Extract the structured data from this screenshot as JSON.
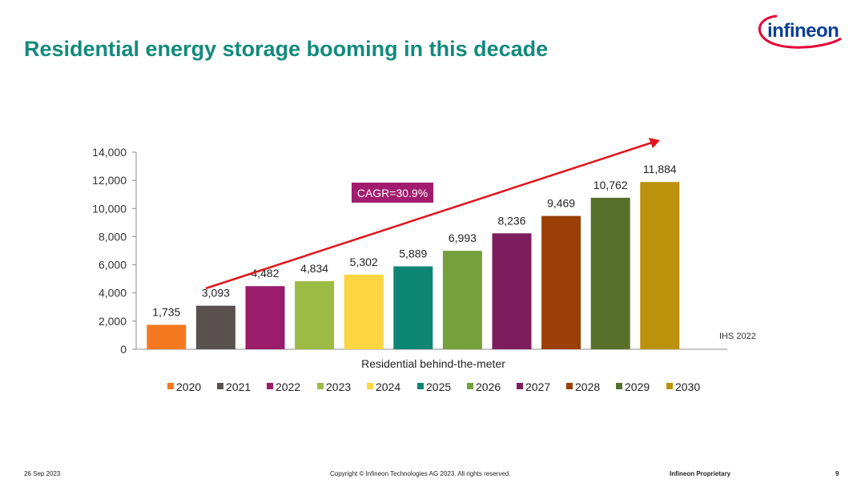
{
  "title": "Residential energy storage booming in this decade",
  "logo": {
    "text": "infineon"
  },
  "colors": {
    "title": "#128a7c",
    "arrow": "#e0141c",
    "cagr_bg": "#a11c6e",
    "series": [
      "#f47920",
      "#585150",
      "#9b1c6b",
      "#9bbb45",
      "#fcd540",
      "#0d8575",
      "#75a03b",
      "#7e1d5d",
      "#9b3f06",
      "#56702b",
      "#bb920a"
    ]
  },
  "chart_data": {
    "type": "bar",
    "title": "",
    "xlabel": "Residential behind-the-meter",
    "ylabel": "",
    "ylim": [
      0,
      14000
    ],
    "yticks": [
      "0",
      "2,000",
      "4,000",
      "6,000",
      "8,000",
      "10,000",
      "12,000",
      "14,000"
    ],
    "categories": [
      "2020",
      "2021",
      "2022",
      "2023",
      "2024",
      "2025",
      "2026",
      "2027",
      "2028",
      "2029",
      "2030"
    ],
    "values": [
      1735,
      3093,
      4482,
      4834,
      5302,
      5889,
      6993,
      8236,
      9469,
      10762,
      11884
    ],
    "labels": [
      "1,735",
      "3,093",
      "4,482",
      "4,834",
      "5,302",
      "5,889",
      "6,993",
      "8,236",
      "9,469",
      "10,762",
      "11,884"
    ],
    "annotation": "CAGR=30.9%",
    "source": "IHS 2022",
    "legend_position": "bottom"
  },
  "footer": {
    "date": "26 Sep 2023",
    "copyright": "Copyright © Infineon Technologies AG 2023. All rights reserved.",
    "proprietary": "Infineon Proprietary",
    "page": "9"
  }
}
